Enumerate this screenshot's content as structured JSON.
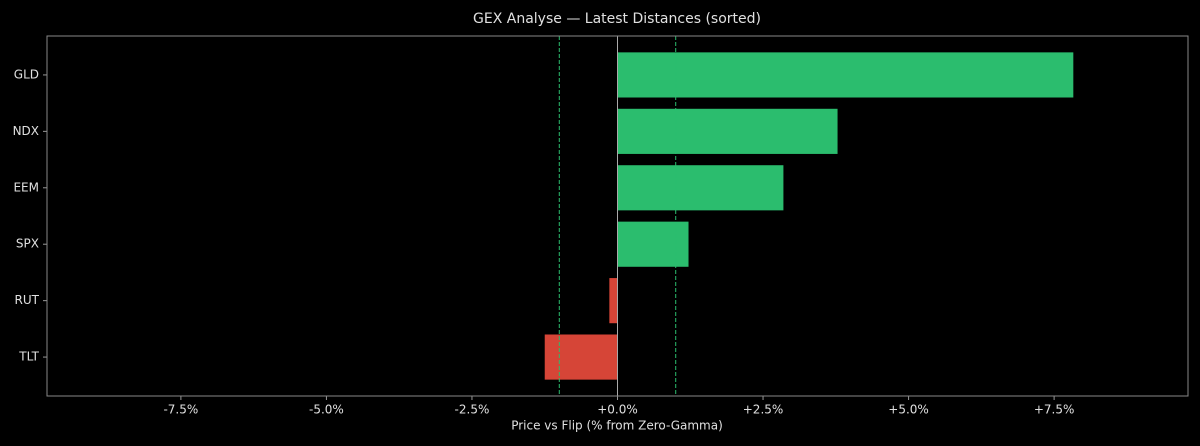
{
  "chart_data": {
    "type": "barh",
    "title": "GEX Analyse — Latest Distances (sorted)",
    "x_label": "Price vs Flip (% from Zero-Gamma)",
    "categories": [
      "GLD",
      "NDX",
      "EEM",
      "SPX",
      "RUT",
      "TLT"
    ],
    "values": [
      7.83,
      3.78,
      2.85,
      1.22,
      -0.14,
      -1.25
    ],
    "positive_color": "#2bbd6e",
    "negative_color": "#d64537",
    "xlim": [
      -9.8,
      9.8
    ],
    "xticks": [
      {
        "value": -7.5,
        "label": "-7.5%"
      },
      {
        "value": -5,
        "label": "-5.0%"
      },
      {
        "value": -2.5,
        "label": "-2.5%"
      },
      {
        "value": 0,
        "label": "+0.0%"
      },
      {
        "value": 2.5,
        "label": "+2.5%"
      },
      {
        "value": 5,
        "label": "+5.0%"
      },
      {
        "value": 7.5,
        "label": "+7.5%"
      }
    ],
    "reference_lines": [
      -1,
      1
    ],
    "reference_color": "#2bbd6e",
    "grid": false
  }
}
